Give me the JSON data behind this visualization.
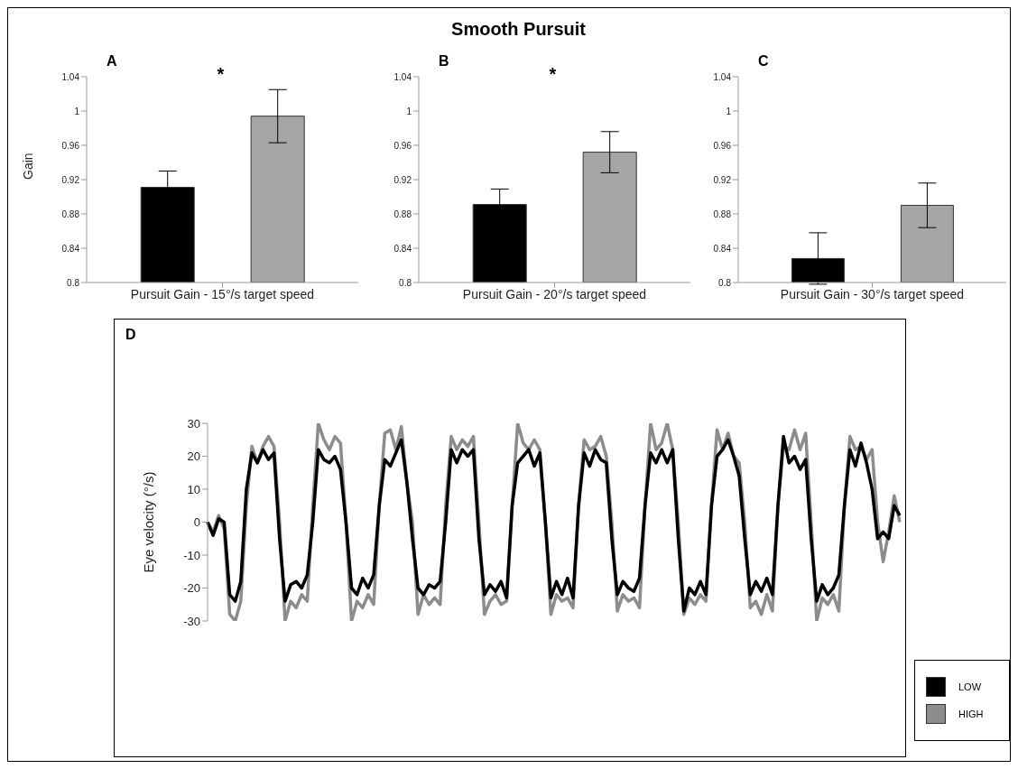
{
  "chart_data": [
    {
      "type": "bar",
      "ylabel": "Gain",
      "categories": [
        "Pursuit Gain - 15°/s target speed"
      ],
      "series": [
        {
          "color": "#000000",
          "values": [
            0.911
          ],
          "errors": [
            0.019
          ]
        },
        {
          "color": "#a5a5a5",
          "values": [
            0.994
          ],
          "errors": [
            0.031
          ]
        }
      ],
      "ylim": [
        0.8,
        1.04
      ],
      "yticks": [
        0.8,
        0.84,
        0.88,
        0.92,
        0.96,
        1,
        1.04
      ],
      "annotations": [
        "A",
        "*"
      ]
    },
    {
      "type": "bar",
      "title": "Smooth Pursuit",
      "categories": [
        "Pursuit Gain - 20°/s target speed"
      ],
      "series": [
        {
          "color": "#000000",
          "values": [
            0.891
          ],
          "errors": [
            0.018
          ]
        },
        {
          "color": "#a5a5a5",
          "values": [
            0.952
          ],
          "errors": [
            0.024
          ]
        }
      ],
      "ylim": [
        0.8,
        1.04
      ],
      "yticks": [
        0.8,
        0.84,
        0.88,
        0.92,
        0.96,
        1,
        1.04
      ],
      "annotations": [
        "B",
        "*"
      ]
    },
    {
      "type": "bar",
      "categories": [
        "Pursuit Gain - 30°/s target speed"
      ],
      "series": [
        {
          "color": "#000000",
          "values": [
            0.828
          ],
          "errors": [
            0.03
          ]
        },
        {
          "color": "#a5a5a5",
          "values": [
            0.89
          ],
          "errors": [
            0.026
          ]
        }
      ],
      "ylim": [
        0.8,
        1.04
      ],
      "yticks": [
        0.8,
        0.84,
        0.88,
        0.92,
        0.96,
        1,
        1.04
      ],
      "annotations": [
        "C"
      ]
    },
    {
      "type": "line",
      "ylabel": "Eye velocity (°/s)",
      "legend": "bottom right",
      "ylim": [
        -30,
        30
      ],
      "yticks": [
        -30,
        -20,
        -10,
        0,
        10,
        20,
        30
      ],
      "annotations": [
        "D"
      ],
      "categories": [
        null,
        null,
        null,
        null,
        null,
        null,
        null,
        null,
        null,
        null,
        null,
        null,
        null,
        null,
        null,
        null,
        null,
        null,
        null,
        null,
        null,
        null,
        null,
        null,
        null,
        null,
        null,
        null,
        null,
        null,
        null,
        null,
        null,
        null,
        null,
        null,
        null,
        null,
        null,
        null,
        null,
        null,
        null,
        null,
        null,
        null,
        null,
        null,
        null,
        null,
        null,
        null,
        null,
        null,
        null,
        null,
        null,
        null,
        null,
        null,
        null,
        null,
        null,
        null,
        null,
        null,
        null,
        null,
        null,
        null,
        null,
        null,
        null,
        null,
        null,
        null,
        null,
        null,
        null,
        null,
        null,
        null,
        null,
        null,
        null,
        null,
        null,
        null,
        null,
        null,
        null,
        null,
        null,
        null,
        null,
        null,
        null,
        null,
        null,
        null,
        null,
        null,
        null,
        null,
        null,
        null,
        null,
        null,
        null,
        null,
        null,
        null,
        null,
        null,
        null,
        null,
        null,
        null,
        null,
        null,
        null,
        null,
        null,
        null,
        null,
        null
      ],
      "series": [
        {
          "name": "LOW",
          "color": "#000000",
          "values": [
            0,
            -4,
            1,
            0,
            -22,
            -24,
            -18,
            10,
            21,
            18,
            22,
            19,
            21,
            -5,
            -24,
            -19,
            -18,
            -20,
            -16,
            0,
            22,
            19,
            18,
            20,
            16,
            0,
            -20,
            -22,
            -17,
            -20,
            -16,
            5,
            19,
            17,
            21,
            25,
            12,
            -5,
            -20,
            -22,
            -19,
            -20,
            -18,
            0,
            22,
            18,
            22,
            20,
            22,
            -5,
            -22,
            -19,
            -21,
            -18,
            -23,
            5,
            18,
            20,
            22,
            17,
            21,
            0,
            -23,
            -18,
            -22,
            -17,
            -23,
            5,
            21,
            17,
            22,
            19,
            18,
            -5,
            -22,
            -18,
            -20,
            -21,
            -17,
            5,
            21,
            18,
            22,
            18,
            22,
            -5,
            -27,
            -20,
            -22,
            -18,
            -22,
            5,
            20,
            22,
            25,
            20,
            14,
            -5,
            -22,
            -18,
            -21,
            -17,
            -22,
            5,
            26,
            18,
            20,
            16,
            19,
            -5,
            -24,
            -19,
            -22,
            -20,
            -16,
            5,
            22,
            17,
            24,
            18,
            10,
            -5,
            -3,
            -5,
            5,
            2
          ]
        },
        {
          "name": "HIGH",
          "color": "#8c8c8c",
          "values": [
            0,
            -3,
            2,
            -2,
            -28,
            -30,
            -24,
            5,
            23,
            18,
            23,
            26,
            23,
            0,
            -30,
            -24,
            -26,
            -22,
            -24,
            5,
            30,
            25,
            22,
            26,
            24,
            0,
            -30,
            -24,
            -26,
            -22,
            -25,
            5,
            27,
            28,
            22,
            29,
            12,
            0,
            -28,
            -22,
            -25,
            -23,
            -25,
            5,
            26,
            22,
            25,
            23,
            26,
            0,
            -28,
            -24,
            -22,
            -25,
            -24,
            5,
            30,
            24,
            22,
            25,
            22,
            0,
            -28,
            -22,
            -24,
            -23,
            -26,
            5,
            25,
            22,
            23,
            26,
            20,
            0,
            -27,
            -22,
            -24,
            -23,
            -26,
            5,
            30,
            22,
            24,
            30,
            22,
            0,
            -28,
            -23,
            -25,
            -22,
            -24,
            5,
            28,
            22,
            27,
            20,
            18,
            0,
            -26,
            -24,
            -28,
            -22,
            -27,
            5,
            23,
            22,
            28,
            22,
            27,
            0,
            -30,
            -23,
            -25,
            -22,
            -27,
            5,
            26,
            22,
            23,
            19,
            22,
            0,
            -12,
            -3,
            8,
            0
          ]
        }
      ]
    }
  ]
}
